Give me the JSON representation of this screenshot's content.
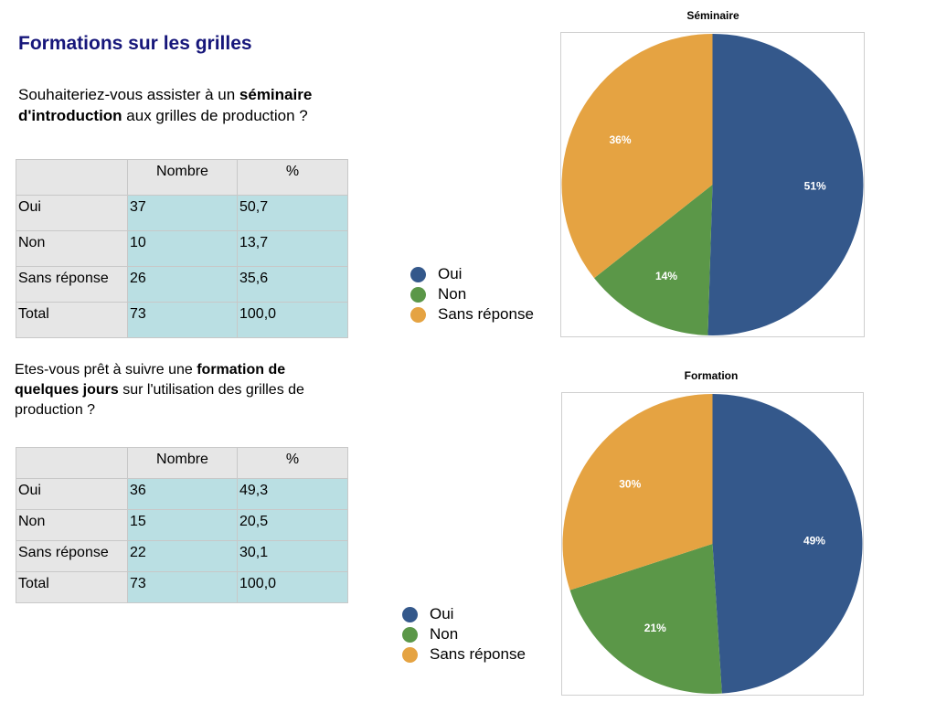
{
  "page": {
    "title": "Formations sur les grilles"
  },
  "sections": [
    {
      "question": {
        "before": "Souhaiteriez-vous assister à un ",
        "bold": "séminaire d'introduction",
        "after": " aux grilles de production ?"
      },
      "table": {
        "headers": [
          "",
          "Nombre",
          "%"
        ],
        "rows": [
          {
            "label": "Oui",
            "nombre": "37",
            "pct": "50,7"
          },
          {
            "label": "Non",
            "nombre": "10",
            "pct": "13,7"
          },
          {
            "label": "Sans réponse",
            "nombre": "26",
            "pct": "35,6"
          },
          {
            "label": "Total",
            "nombre": "73",
            "pct": "100,0"
          }
        ]
      }
    },
    {
      "question": {
        "before": "Etes-vous prêt à suivre une ",
        "bold": "formation de quelques jours",
        "after": " sur l'utilisation des grilles de production ?"
      },
      "table": {
        "headers": [
          "",
          "Nombre",
          "%"
        ],
        "rows": [
          {
            "label": "Oui",
            "nombre": "36",
            "pct": "49,3"
          },
          {
            "label": "Non",
            "nombre": "15",
            "pct": "20,5"
          },
          {
            "label": "Sans réponse",
            "nombre": "22",
            "pct": "30,1"
          },
          {
            "label": "Total",
            "nombre": "73",
            "pct": "100,0"
          }
        ]
      }
    }
  ],
  "chart_data": [
    {
      "type": "pie",
      "title": "Séminaire",
      "categories": [
        "Oui",
        "Non",
        "Sans réponse"
      ],
      "values": [
        51,
        14,
        36
      ],
      "labels": [
        "51%",
        "14%",
        "36%"
      ],
      "colors": [
        "#34588b",
        "#5b9748",
        "#e5a342"
      ],
      "legend": "left"
    },
    {
      "type": "pie",
      "title": "Formation",
      "categories": [
        "Oui",
        "Non",
        "Sans réponse"
      ],
      "values": [
        49,
        21,
        30
      ],
      "labels": [
        "49%",
        "21%",
        "30%"
      ],
      "colors": [
        "#34588b",
        "#5b9748",
        "#e5a342"
      ],
      "legend": "left"
    }
  ]
}
